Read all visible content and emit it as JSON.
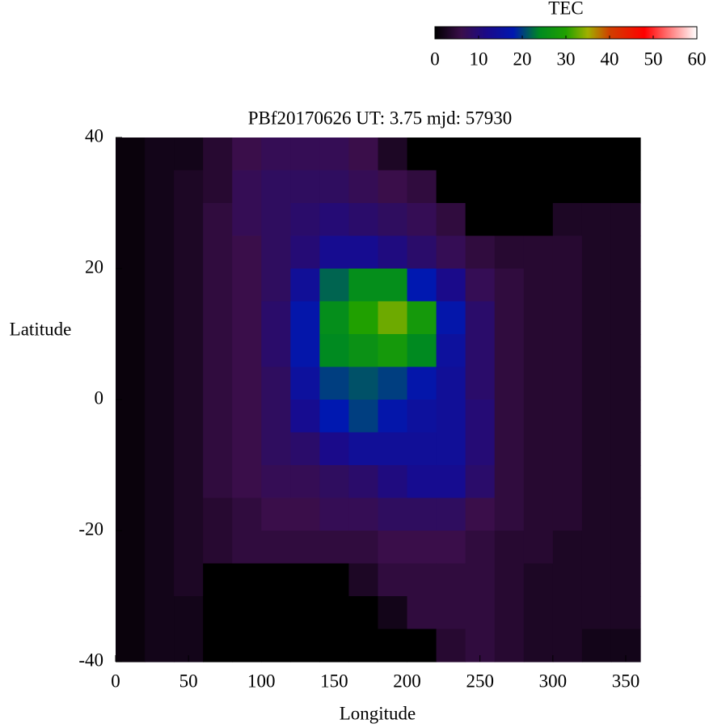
{
  "chart_data": {
    "type": "heatmap",
    "title": "PBf20170626  UT: 3.75  mjd: 57930",
    "xlabel": "Longitude",
    "ylabel": "Latitude",
    "colorbar_title": "TEC",
    "xlim": [
      0,
      360
    ],
    "ylim": [
      -40,
      40
    ],
    "xticks": [
      0,
      50,
      100,
      150,
      200,
      250,
      300,
      350
    ],
    "yticks": [
      -40,
      -20,
      0,
      20,
      40
    ],
    "zlim": [
      0,
      60
    ],
    "zticks": [
      0,
      10,
      20,
      30,
      40,
      50,
      60
    ],
    "colormap": [
      {
        "value": 0,
        "color": "#000000"
      },
      {
        "value": 6,
        "color": "#3a0e4a"
      },
      {
        "value": 12,
        "color": "#1a0a8a"
      },
      {
        "value": 18,
        "color": "#0018b0"
      },
      {
        "value": 24,
        "color": "#008a20"
      },
      {
        "value": 30,
        "color": "#20a000"
      },
      {
        "value": 35,
        "color": "#a0b000"
      },
      {
        "value": 40,
        "color": "#d04000"
      },
      {
        "value": 48,
        "color": "#ff0000"
      },
      {
        "value": 60,
        "color": "#ffffff"
      }
    ],
    "xbins": [
      0,
      20,
      40,
      60,
      80,
      100,
      120,
      140,
      160,
      180,
      200,
      220,
      240,
      260,
      280,
      300,
      320,
      340,
      360
    ],
    "ybins": [
      40,
      35,
      30,
      25,
      20,
      15,
      10,
      5,
      0,
      -5,
      -10,
      -15,
      -20,
      -25,
      -30,
      -35,
      -40
    ],
    "z": [
      [
        1,
        2,
        2,
        4,
        6,
        7,
        7,
        7,
        6,
        3,
        0,
        0,
        0,
        0,
        0,
        0,
        0,
        0
      ],
      [
        1,
        2,
        3,
        4,
        7,
        8,
        8,
        8,
        7,
        6,
        5,
        0,
        0,
        0,
        0,
        0,
        0,
        0
      ],
      [
        1,
        2,
        3,
        5,
        7,
        8,
        9,
        10,
        9,
        8,
        7,
        5,
        0,
        0,
        0,
        3,
        3,
        3
      ],
      [
        1,
        2,
        3,
        5,
        6,
        8,
        10,
        13,
        13,
        11,
        9,
        7,
        5,
        4,
        4,
        4,
        3,
        3
      ],
      [
        1,
        2,
        3,
        5,
        6,
        8,
        14,
        22,
        25,
        25,
        18,
        12,
        7,
        5,
        4,
        4,
        3,
        3
      ],
      [
        1,
        2,
        3,
        5,
        6,
        9,
        17,
        25,
        30,
        33,
        28,
        17,
        9,
        5,
        4,
        4,
        3,
        3
      ],
      [
        1,
        2,
        3,
        5,
        6,
        9,
        17,
        24,
        26,
        28,
        24,
        15,
        9,
        5,
        4,
        4,
        3,
        3
      ],
      [
        1,
        2,
        3,
        5,
        6,
        8,
        15,
        20,
        21,
        20,
        17,
        14,
        9,
        5,
        4,
        4,
        3,
        3
      ],
      [
        1,
        2,
        3,
        5,
        6,
        8,
        13,
        18,
        20,
        17,
        15,
        14,
        10,
        5,
        4,
        4,
        3,
        3
      ],
      [
        1,
        2,
        3,
        5,
        6,
        8,
        9,
        12,
        14,
        14,
        14,
        14,
        10,
        5,
        4,
        4,
        3,
        3
      ],
      [
        1,
        2,
        3,
        5,
        6,
        7,
        7,
        8,
        9,
        11,
        13,
        13,
        9,
        5,
        4,
        4,
        3,
        3
      ],
      [
        1,
        2,
        3,
        4,
        5,
        6,
        6,
        7,
        7,
        8,
        8,
        8,
        6,
        5,
        4,
        4,
        3,
        3
      ],
      [
        1,
        2,
        3,
        4,
        5,
        5,
        5,
        5,
        5,
        6,
        6,
        6,
        5,
        4,
        4,
        3,
        3,
        3
      ],
      [
        1,
        2,
        3,
        0,
        0,
        0,
        0,
        0,
        3,
        5,
        5,
        5,
        5,
        4,
        3,
        3,
        3,
        3
      ],
      [
        1,
        2,
        2,
        0,
        0,
        0,
        0,
        0,
        0,
        2,
        5,
        5,
        5,
        4,
        3,
        3,
        3,
        3
      ],
      [
        1,
        2,
        2,
        0,
        0,
        0,
        0,
        0,
        0,
        0,
        0,
        4,
        5,
        4,
        3,
        3,
        2,
        2
      ]
    ]
  }
}
